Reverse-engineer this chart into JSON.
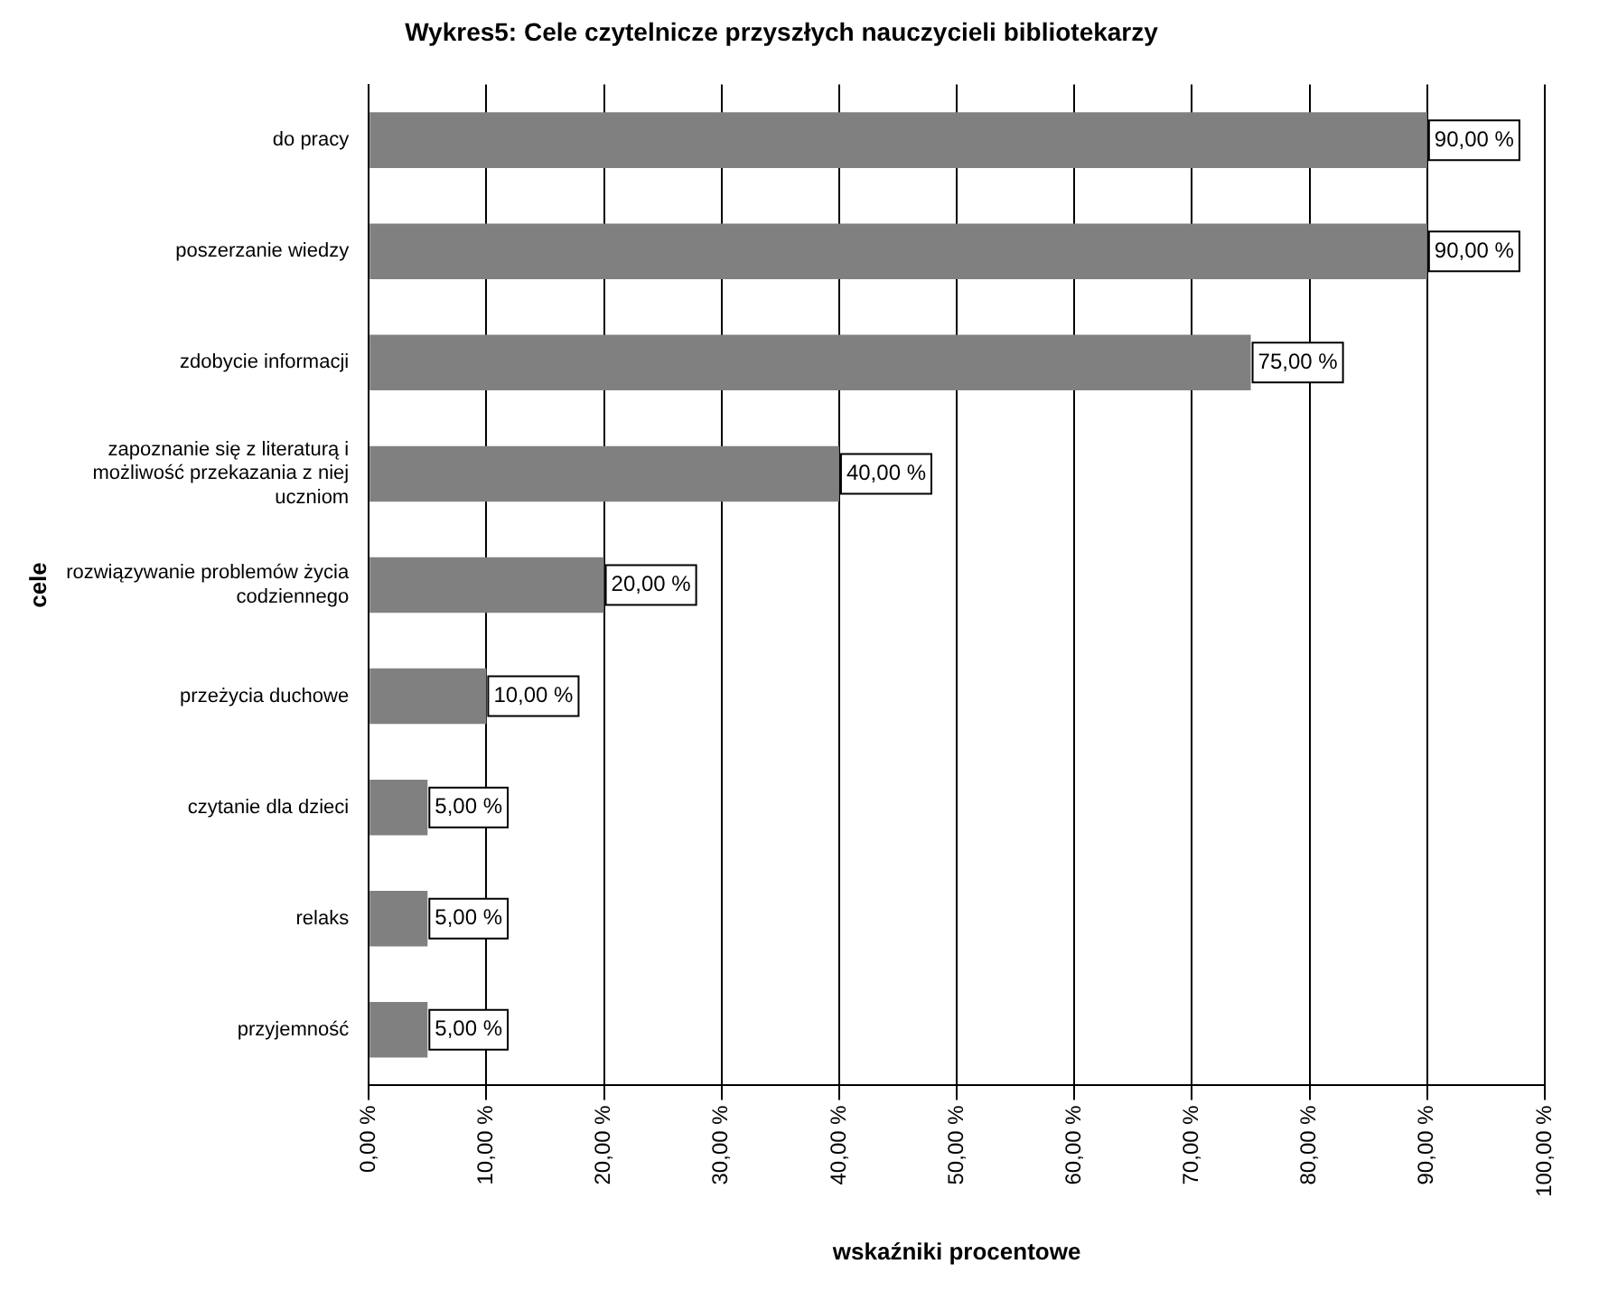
{
  "chart_data": {
    "type": "bar",
    "orientation": "horizontal",
    "title": "Wykres5: Cele czytelnicze przyszłych nauczycieli bibliotekarzy",
    "xlabel": "wskaźniki procentowe",
    "ylabel": "cele",
    "categories": [
      "do pracy",
      "poszerzanie wiedzy",
      "zdobycie informacji",
      "zapoznanie się z literaturą i możliwość przekazania z niej uczniom",
      "rozwiązywanie problemów życia codziennego",
      "przeżycia duchowe",
      "czytanie dla dzieci",
      "relaks",
      "przyjemność"
    ],
    "values": [
      90,
      90,
      75,
      40,
      20,
      10,
      5,
      5,
      5
    ],
    "value_labels": [
      "90,00 %",
      "90,00 %",
      "75,00 %",
      "40,00 %",
      "20,00 %",
      "10,00 %",
      "5,00 %",
      "5,00 %",
      "5,00 %"
    ],
    "color": "#808080",
    "xlim": [
      0,
      100
    ],
    "xticks": [
      {
        "value": 0,
        "label": "0,00 %"
      },
      {
        "value": 10,
        "label": "10,00 %"
      },
      {
        "value": 20,
        "label": "20,00 %"
      },
      {
        "value": 30,
        "label": "30,00 %"
      },
      {
        "value": 40,
        "label": "40,00 %"
      },
      {
        "value": 50,
        "label": "50,00 %"
      },
      {
        "value": 60,
        "label": "60,00 %"
      },
      {
        "value": 70,
        "label": "70,00 %"
      },
      {
        "value": 80,
        "label": "80,00 %"
      },
      {
        "value": 90,
        "label": "90,00 %"
      },
      {
        "value": 100,
        "label": "100,00 %"
      }
    ],
    "grid": "x",
    "legend": false
  }
}
